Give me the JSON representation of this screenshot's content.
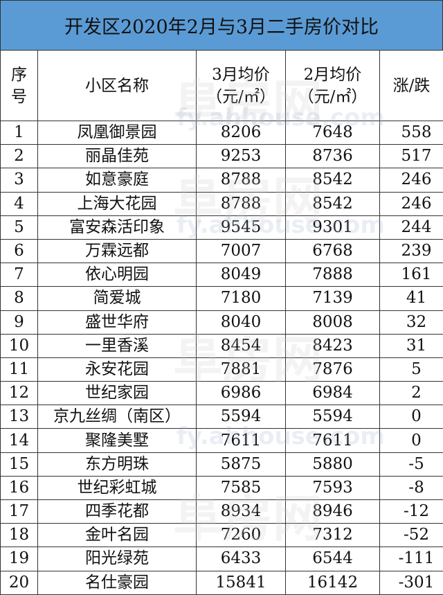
{
  "title": "开发区2020年2月与3月二手房价对比",
  "headers": {
    "index": [
      "序",
      "号"
    ],
    "name": "小区名称",
    "march": [
      "3月均价",
      "（元/㎡）"
    ],
    "february": [
      "2月均价",
      "（元/㎡）"
    ],
    "change": "涨/跌"
  },
  "rows": [
    {
      "no": "1",
      "name": "凤凰御景园",
      "march": "8206",
      "feb": "7648",
      "change": "558"
    },
    {
      "no": "2",
      "name": "丽晶佳苑",
      "march": "9253",
      "feb": "8736",
      "change": "517"
    },
    {
      "no": "3",
      "name": "如意豪庭",
      "march": "8788",
      "feb": "8542",
      "change": "246"
    },
    {
      "no": "4",
      "name": "上海大花园",
      "march": "8788",
      "feb": "8542",
      "change": "246"
    },
    {
      "no": "5",
      "name": "富安森活印象",
      "march": "9545",
      "feb": "9301",
      "change": "244"
    },
    {
      "no": "6",
      "name": "万霖远都",
      "march": "7007",
      "feb": "6768",
      "change": "239"
    },
    {
      "no": "7",
      "name": "依心明园",
      "march": "8049",
      "feb": "7888",
      "change": "161"
    },
    {
      "no": "8",
      "name": "简爱城",
      "march": "7180",
      "feb": "7139",
      "change": "41"
    },
    {
      "no": "9",
      "name": "盛世华府",
      "march": "8040",
      "feb": "8008",
      "change": "32"
    },
    {
      "no": "10",
      "name": "一里香溪",
      "march": "8454",
      "feb": "8423",
      "change": "31"
    },
    {
      "no": "11",
      "name": "永安花园",
      "march": "7881",
      "feb": "7876",
      "change": "5"
    },
    {
      "no": "12",
      "name": "世纪家园",
      "march": "6986",
      "feb": "6984",
      "change": "2"
    },
    {
      "no": "13",
      "name": "京九丝绸（南区）",
      "march": "5594",
      "feb": "5594",
      "change": "0"
    },
    {
      "no": "14",
      "name": "聚隆美墅",
      "march": "7611",
      "feb": "7611",
      "change": "0"
    },
    {
      "no": "15",
      "name": "东方明珠",
      "march": "5875",
      "feb": "5880",
      "change": "-5"
    },
    {
      "no": "16",
      "name": "世纪彩虹城",
      "march": "7585",
      "feb": "7593",
      "change": "-8"
    },
    {
      "no": "17",
      "name": "四季花都",
      "march": "8934",
      "feb": "8946",
      "change": "-12"
    },
    {
      "no": "18",
      "name": "金叶名园",
      "march": "7260",
      "feb": "7312",
      "change": "-52"
    },
    {
      "no": "19",
      "name": "阳光绿苑",
      "march": "6433",
      "feb": "6544",
      "change": "-111"
    },
    {
      "no": "20",
      "name": "名仕豪园",
      "march": "15841",
      "feb": "16142",
      "change": "-301"
    }
  ],
  "watermark": {
    "brand": "阜房网",
    "url": "fy.ahhouse.com"
  },
  "colors": {
    "title_bg": "#5b9bd5",
    "border": "#333333"
  }
}
